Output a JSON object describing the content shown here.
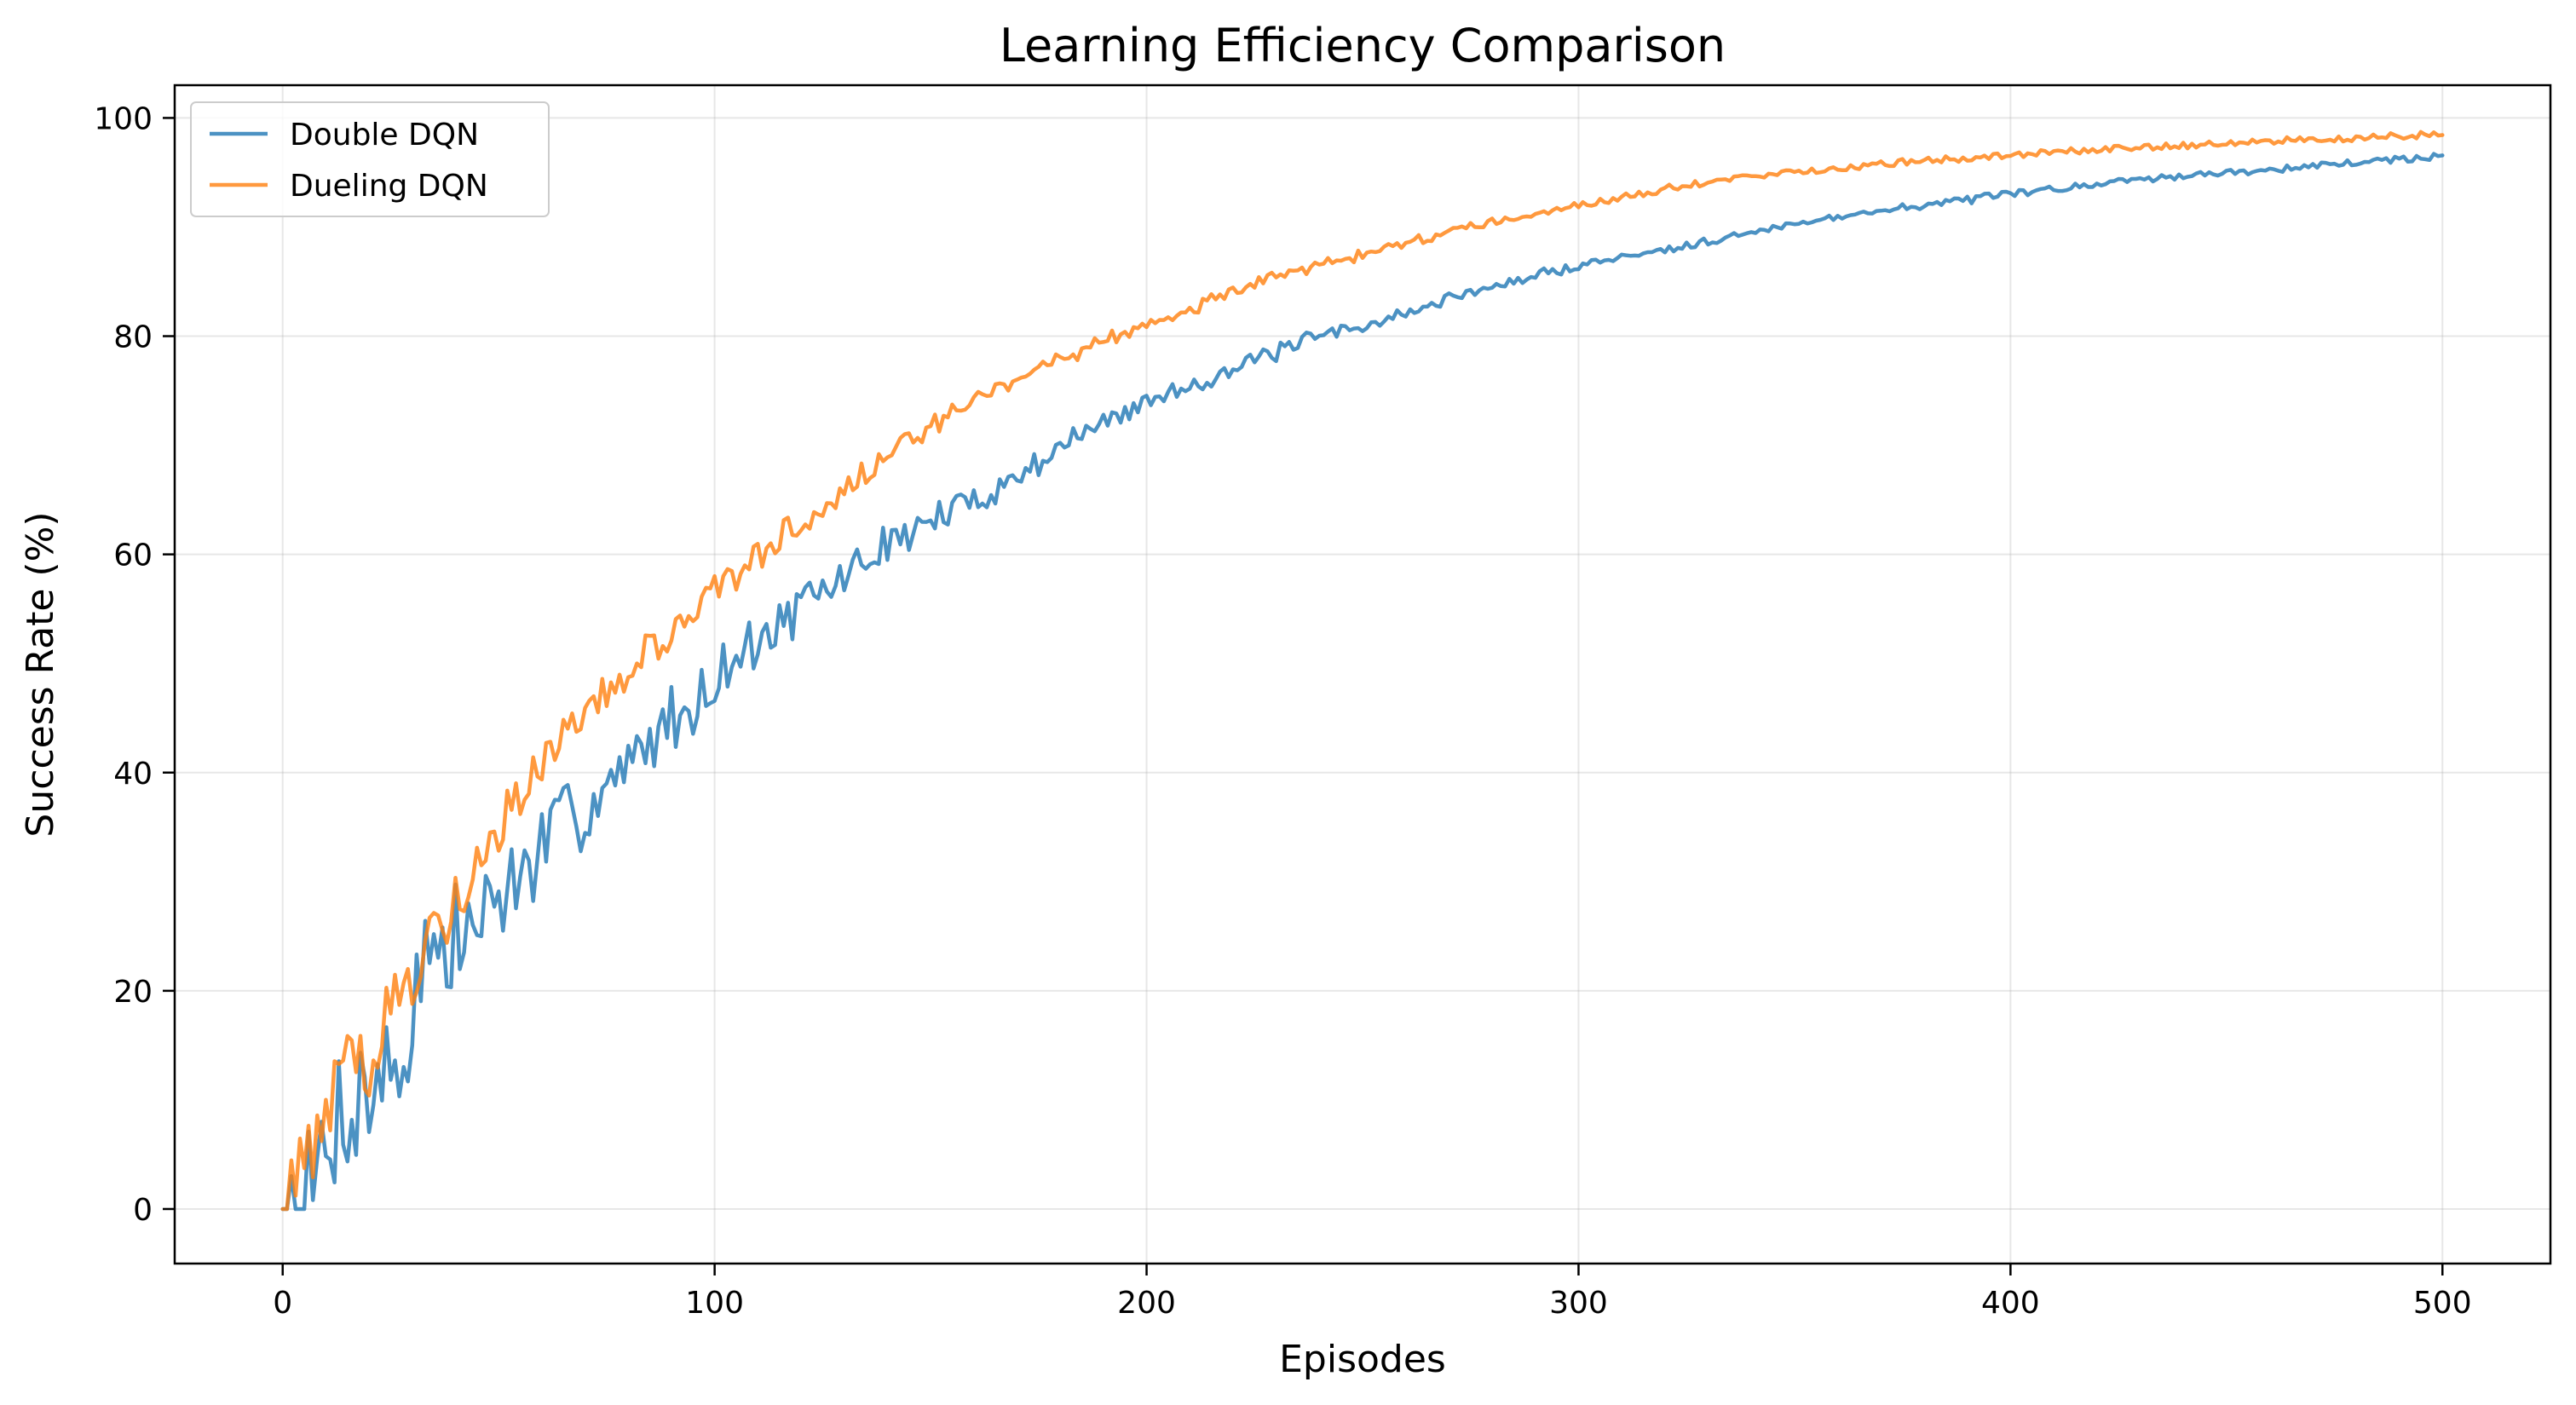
{
  "chart_data": {
    "type": "line",
    "title": "Learning Efficiency Comparison",
    "xlabel": "Episodes",
    "ylabel": "Success Rate (%)",
    "xlim": [
      -25,
      525
    ],
    "ylim": [
      -5,
      103
    ],
    "xticks": [
      0,
      100,
      200,
      300,
      400,
      500
    ],
    "yticks": [
      0,
      20,
      40,
      60,
      80,
      100
    ],
    "grid": true,
    "legend_position": "top-left",
    "series": [
      {
        "name": "Double DQN",
        "color": "#1f77b4",
        "noise": "decaying",
        "x": [
          0,
          2,
          4,
          6,
          8,
          10,
          12,
          14,
          16,
          18,
          20,
          22,
          24,
          26,
          28,
          30,
          32,
          34,
          36,
          38,
          40,
          45,
          50,
          55,
          60,
          65,
          70,
          75,
          80,
          85,
          90,
          95,
          100,
          110,
          120,
          130,
          140,
          150,
          160,
          170,
          180,
          190,
          200,
          210,
          220,
          230,
          240,
          250,
          260,
          270,
          280,
          290,
          300,
          320,
          340,
          360,
          380,
          400,
          420,
          440,
          460,
          480,
          500
        ],
        "y": [
          0,
          1,
          2,
          0,
          3,
          5,
          8,
          10,
          9,
          11,
          10,
          13,
          12,
          14,
          12,
          19,
          23,
          24,
          23,
          22,
          25,
          26,
          29,
          30,
          33,
          35,
          37,
          39,
          40,
          43,
          45,
          46,
          49,
          52,
          55,
          58,
          61,
          63,
          65,
          67,
          70,
          72,
          74,
          75.5,
          77,
          78.5,
          80,
          81,
          82,
          83.5,
          84.5,
          85.5,
          86.5,
          88,
          89.5,
          91,
          92,
          93,
          94,
          94.7,
          95.3,
          95.9,
          96.5
        ]
      },
      {
        "name": "Dueling DQN",
        "color": "#ff7f0e",
        "noise": "decaying",
        "x": [
          0,
          2,
          4,
          6,
          8,
          10,
          12,
          14,
          16,
          18,
          20,
          22,
          24,
          26,
          28,
          30,
          32,
          34,
          36,
          38,
          40,
          45,
          50,
          55,
          60,
          65,
          70,
          75,
          80,
          85,
          90,
          95,
          100,
          110,
          120,
          130,
          140,
          150,
          160,
          170,
          180,
          190,
          200,
          210,
          220,
          230,
          240,
          250,
          260,
          270,
          280,
          290,
          300,
          320,
          340,
          360,
          380,
          400,
          420,
          440,
          460,
          480,
          500
        ],
        "y": [
          0,
          2,
          3,
          5,
          7,
          9,
          11,
          12,
          13,
          13,
          14,
          16,
          17,
          19,
          20,
          22,
          24,
          25,
          26,
          27,
          29,
          32,
          35,
          38,
          40,
          43,
          45,
          47,
          49,
          51,
          53,
          54.5,
          56.5,
          60,
          63,
          66,
          69,
          71.5,
          74,
          76,
          78,
          79.5,
          81,
          82.5,
          84,
          85.5,
          86.5,
          87.5,
          88.5,
          89.5,
          90.5,
          91.3,
          92,
          93.5,
          94.6,
          95.4,
          96.1,
          96.6,
          97.1,
          97.5,
          97.9,
          98.2,
          98.5
        ]
      }
    ]
  }
}
